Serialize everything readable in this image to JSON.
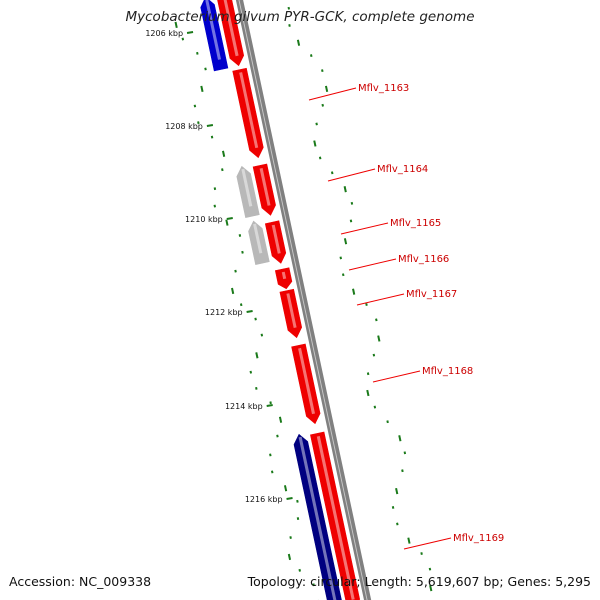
{
  "title": "Mycobacterium gilvum PYR-GCK, complete genome",
  "footer": {
    "accession": "Accession: NC_009338",
    "stats": "Topology: circular; Length: 5,619,607 bp; Genes: 5,295"
  },
  "colors": {
    "forward_gene": "#ee0000",
    "reverse_gene": "#0000cc",
    "dark_gene": "#000080",
    "other_feature": "#b8b8b8",
    "backbone": "#808080",
    "gc_ticks": "#1a7a1a",
    "label_text": "#cc0000",
    "callout_line": "#ee0000"
  },
  "scale_ticks": [
    {
      "label": "1206 kbp",
      "kbp": 1206
    },
    {
      "label": "1208 kbp",
      "kbp": 1208
    },
    {
      "label": "1210 kbp",
      "kbp": 1210
    },
    {
      "label": "1212 kbp",
      "kbp": 1212
    },
    {
      "label": "1214 kbp",
      "kbp": 1214
    },
    {
      "label": "1216 kbp",
      "kbp": 1216
    }
  ],
  "gene_labels": [
    "Mflv_1163",
    "Mflv_1164",
    "Mflv_1165",
    "Mflv_1166",
    "Mflv_1167",
    "Mflv_1168",
    "Mflv_1169"
  ]
}
